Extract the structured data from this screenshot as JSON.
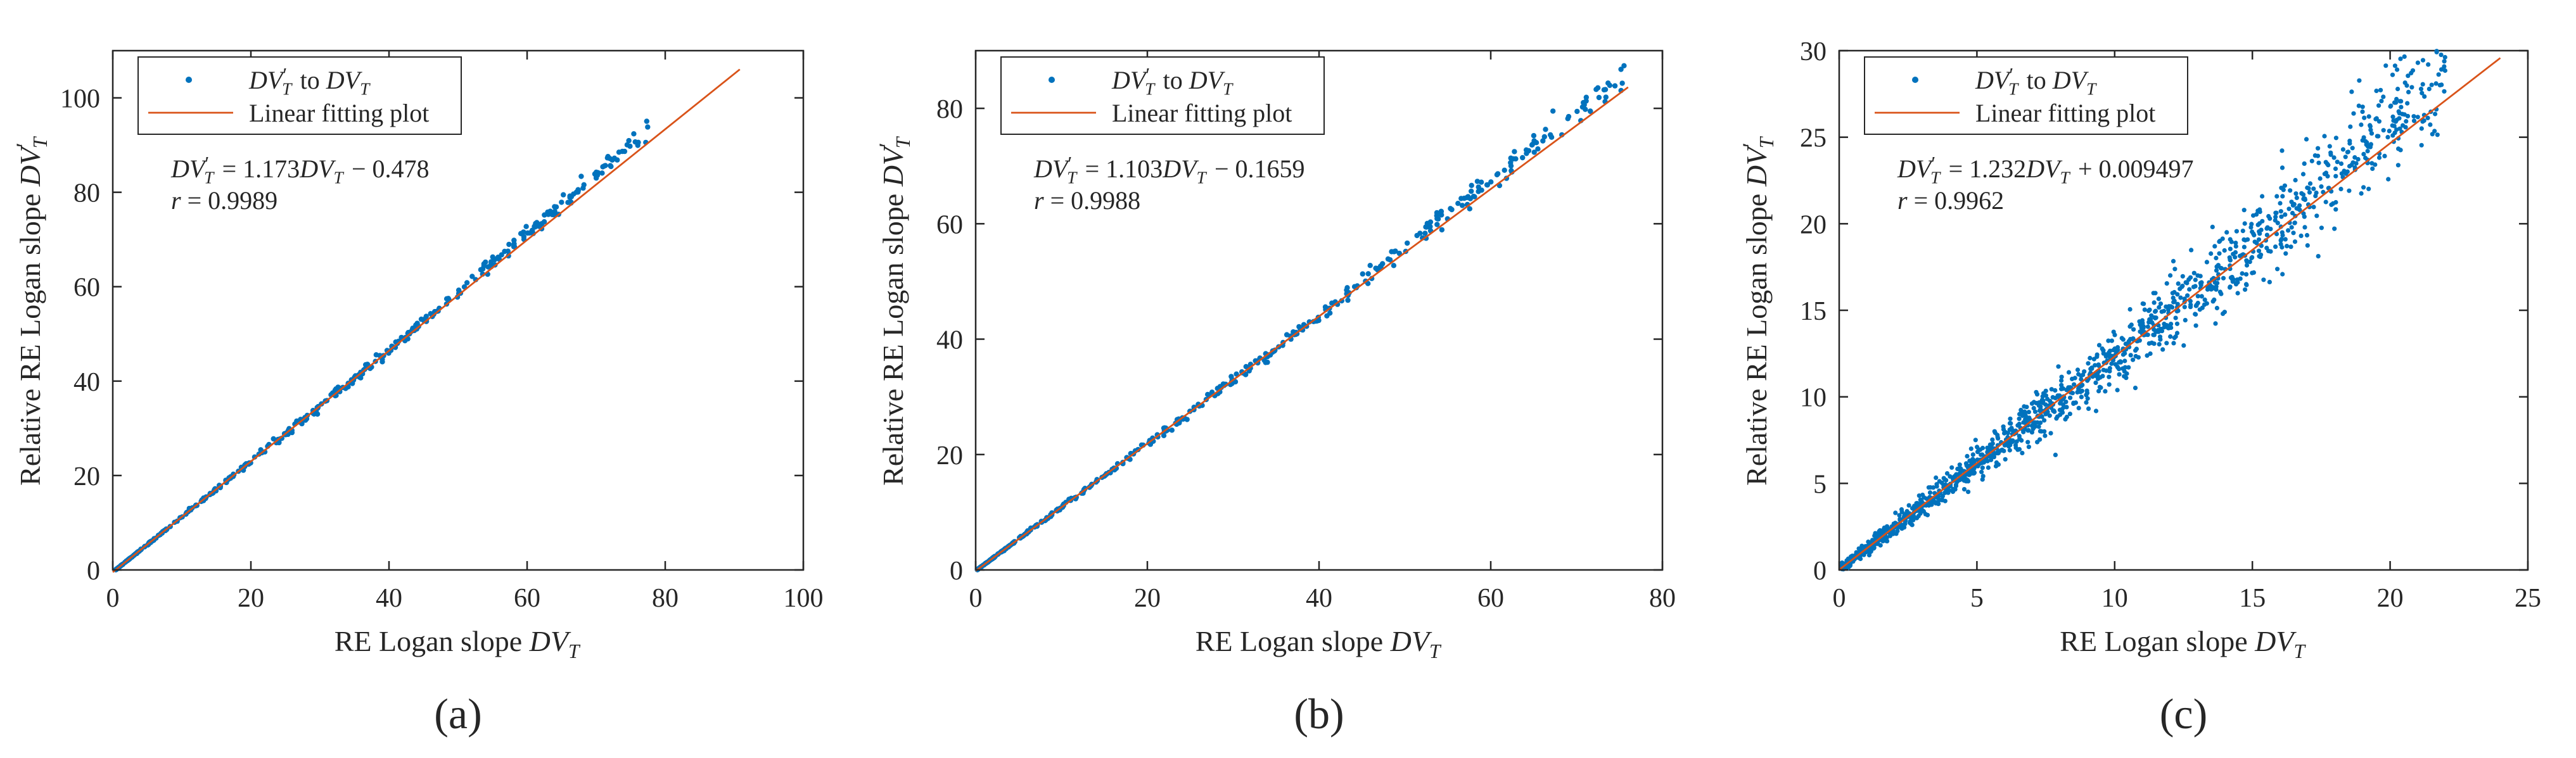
{
  "colors": {
    "scatter": "#0072BD",
    "fit": "#D95319",
    "axis": "#262626"
  },
  "chart_data": [
    {
      "type": "scatter",
      "panel_label": "(a)",
      "xlabel": "RE Logan slope DV_T",
      "ylabel": "Relative RE Logan slope DV'_T",
      "xlim": [
        0,
        100
      ],
      "ylim": [
        0,
        110
      ],
      "xticks": [
        0,
        20,
        40,
        60,
        80,
        100
      ],
      "yticks": [
        0,
        20,
        40,
        60,
        80,
        100
      ],
      "grid": false,
      "legend_position": "top-left",
      "series": [
        {
          "name": "DV'_T to DV_T",
          "kind": "points",
          "slope": 1.173,
          "intercept": -0.478,
          "x_range": [
            0.2,
            78
          ],
          "spread": 0.012
        },
        {
          "name": "Linear fitting plot",
          "kind": "line",
          "slope": 1.173,
          "intercept": -0.478,
          "x_range": [
            0,
            90.8
          ]
        }
      ],
      "annotations": [
        "DV'_T = 1.173DV_T − 0.478",
        "r = 0.9989"
      ]
    },
    {
      "type": "scatter",
      "panel_label": "(b)",
      "xlabel": "RE Logan slope DV_T",
      "ylabel": "Relative RE Logan slope DV'_T",
      "xlim": [
        0,
        80
      ],
      "ylim": [
        0,
        90
      ],
      "xticks": [
        0,
        20,
        40,
        60,
        80
      ],
      "yticks": [
        0,
        20,
        40,
        60,
        80
      ],
      "grid": false,
      "legend_position": "top-left",
      "series": [
        {
          "name": "DV'_T to DV_T",
          "kind": "points",
          "slope": 1.103,
          "intercept": -0.1659,
          "x_range": [
            0.2,
            76
          ],
          "spread": 0.015
        },
        {
          "name": "Linear fitting plot",
          "kind": "line",
          "slope": 1.103,
          "intercept": -0.1659,
          "x_range": [
            0,
            76
          ]
        }
      ],
      "annotations": [
        "DV'_T = 1.103DV_T − 0.1659",
        "r = 0.9988"
      ]
    },
    {
      "type": "scatter",
      "panel_label": "(c)",
      "xlabel": "RE Logan slope DV_T",
      "ylabel": "Relative RE Logan slope DV'_T",
      "xlim": [
        0,
        25
      ],
      "ylim": [
        0,
        30
      ],
      "xticks": [
        0,
        5,
        10,
        15,
        20,
        25
      ],
      "yticks": [
        0,
        5,
        10,
        15,
        20,
        25,
        30
      ],
      "grid": false,
      "legend_position": "top-left",
      "series": [
        {
          "name": "DV'_T to DV_T",
          "kind": "points",
          "slope": 1.232,
          "intercept": 0.009497,
          "x_range": [
            0.1,
            22
          ],
          "spread": 0.12
        },
        {
          "name": "Linear fitting plot",
          "kind": "line",
          "slope": 1.232,
          "intercept": 0.009497,
          "x_range": [
            0,
            24
          ]
        }
      ],
      "annotations": [
        "DV'_T = 1.232DV_T + 0.009497",
        "r = 0.9962"
      ]
    }
  ]
}
